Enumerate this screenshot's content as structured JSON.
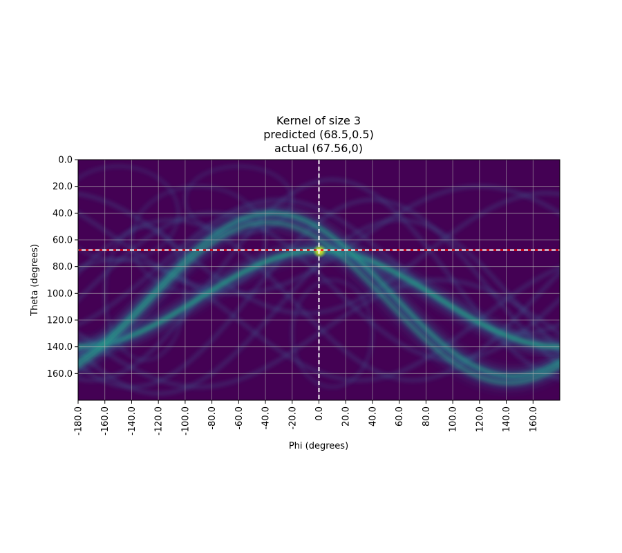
{
  "chart_data": {
    "type": "heatmap",
    "title_lines": [
      "Kernel of size 3",
      "predicted (68.5,0.5)",
      "actual (67.56,0)"
    ],
    "xlabel": "Phi (degrees)",
    "ylabel": "Theta (degrees)",
    "xlim": [
      -180,
      180
    ],
    "ylim": [
      0,
      180
    ],
    "y_inverted": true,
    "x_ticks": [
      "-180.0",
      "-160.0",
      "-140.0",
      "-120.0",
      "-100.0",
      "-80.0",
      "-60.0",
      "-40.0",
      "-20.0",
      "0.0",
      "20.0",
      "40.0",
      "60.0",
      "80.0",
      "100.0",
      "120.0",
      "140.0",
      "160.0"
    ],
    "y_ticks": [
      "0.0",
      "20.0",
      "40.0",
      "60.0",
      "80.0",
      "100.0",
      "120.0",
      "140.0",
      "160.0"
    ],
    "grid": true,
    "colormap": "viridis",
    "background_color": "#440154",
    "actual_point": {
      "phi": 0,
      "theta": 67.56
    },
    "predicted_point": {
      "phi": 0.5,
      "theta": 68.5
    },
    "crosshair_horizontal_colors": [
      "#ff0000",
      "#ffffff"
    ],
    "crosshair_vertical_color": "#ffffff",
    "bright_bands": [
      {
        "center_theta": 104,
        "amplitude": 36,
        "phase_deg": 0,
        "intensity": 0.55
      },
      {
        "center_theta": 101,
        "amplitude": 61,
        "phase_deg": -35,
        "intensity": 0.45
      },
      {
        "center_theta": 107,
        "amplitude": 60,
        "phase_deg": -38,
        "intensity": 0.3
      }
    ]
  }
}
